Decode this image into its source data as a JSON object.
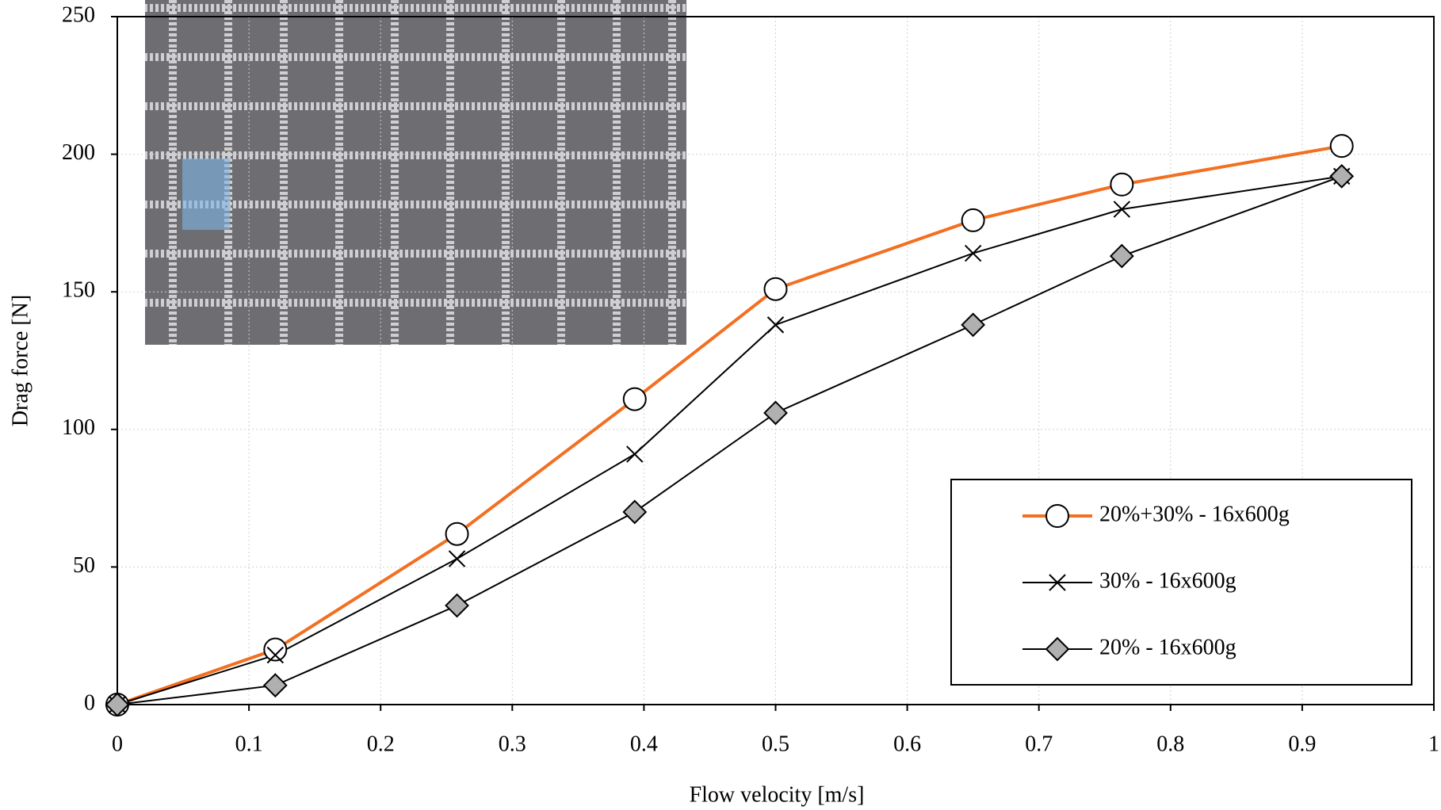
{
  "chart_data": {
    "type": "line",
    "xlabel": "Flow velocity [m/s]",
    "ylabel": "Drag force [N]",
    "x": [
      0,
      0.12,
      0.258,
      0.393,
      0.5,
      0.65,
      0.763,
      0.93
    ],
    "series": [
      {
        "name": "20%+30% - 16x600g",
        "color": "#f36f21",
        "marker": "circle",
        "values": [
          0,
          20,
          62,
          111,
          151,
          176,
          189,
          203
        ]
      },
      {
        "name": "30% - 16x600g",
        "color": "#000000",
        "marker": "x",
        "values": [
          0,
          18,
          53,
          91,
          138,
          164,
          180,
          192
        ]
      },
      {
        "name": "20% - 16x600g",
        "color": "#000000",
        "marker": "diamond",
        "values": [
          0,
          7,
          36,
          70,
          106,
          138,
          163,
          192
        ]
      }
    ],
    "xlim": [
      0,
      1
    ],
    "xticks": [
      0,
      0.1,
      0.2,
      0.3,
      0.4,
      0.5,
      0.6,
      0.7,
      0.8,
      0.9,
      1
    ],
    "ylim": [
      0,
      250
    ],
    "yticks": [
      0,
      50,
      100,
      150,
      200,
      250
    ],
    "grid": true,
    "legend": "lower right"
  }
}
